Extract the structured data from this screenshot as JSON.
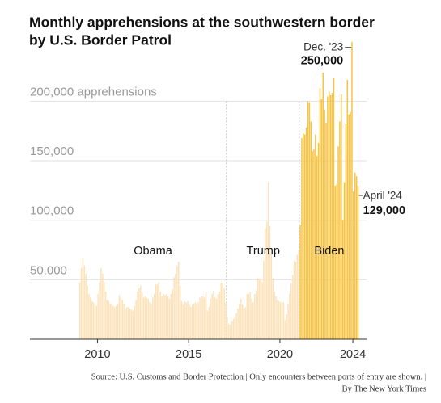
{
  "chart_data": {
    "type": "bar",
    "title": [
      "Monthly apprehensions at the southwestern border",
      "by U.S. Border Patrol"
    ],
    "source": [
      "Source: U.S. Customs and Border Protection | Only encounters between ports of entry are shown. |",
      "By The New York Times"
    ],
    "xlim": [
      2006.3,
      2024.75
    ],
    "xticks": [
      2010,
      2015,
      2020,
      2024
    ],
    "ylim": [
      0,
      260000
    ],
    "yticks": [
      {
        "value": 50000,
        "label": "50,000"
      },
      {
        "value": 100000,
        "label": "100,000"
      },
      {
        "value": 150000,
        "label": "150,000"
      },
      {
        "value": 200000,
        "label": "200,000 apprehensions"
      }
    ],
    "grid": true,
    "annotations": [
      "Dec. '23",
      "April '24"
    ],
    "series": [
      {
        "name": "Obama",
        "color": "#fce3bb",
        "x": [
          2009,
          2009.083,
          2009.167,
          2009.25,
          2009.333,
          2009.417,
          2009.5,
          2009.583,
          2009.667,
          2009.75,
          2009.833,
          2009.917,
          2010,
          2010.083,
          2010.167,
          2010.25,
          2010.333,
          2010.417,
          2010.5,
          2010.583,
          2010.667,
          2010.75,
          2010.833,
          2010.917,
          2011,
          2011.083,
          2011.167,
          2011.25,
          2011.333,
          2011.417,
          2011.5,
          2011.583,
          2011.667,
          2011.75,
          2011.833,
          2011.917,
          2012,
          2012.083,
          2012.167,
          2012.25,
          2012.333,
          2012.417,
          2012.5,
          2012.583,
          2012.667,
          2012.75,
          2012.833,
          2012.917,
          2013,
          2013.083,
          2013.167,
          2013.25,
          2013.333,
          2013.417,
          2013.5,
          2013.583,
          2013.667,
          2013.75,
          2013.833,
          2013.917,
          2014,
          2014.083,
          2014.167,
          2014.25,
          2014.333,
          2014.417,
          2014.5,
          2014.583,
          2014.667,
          2014.75,
          2014.833,
          2014.917,
          2015,
          2015.083,
          2015.167,
          2015.25,
          2015.333,
          2015.417,
          2015.5,
          2015.583,
          2015.667,
          2015.75,
          2015.833,
          2015.917,
          2016,
          2016.083,
          2016.167,
          2016.25,
          2016.333,
          2016.417,
          2016.5,
          2016.583,
          2016.667,
          2016.75,
          2016.833,
          2016.917,
          2017
        ],
        "values": [
          48000,
          60000,
          68000,
          62000,
          55000,
          45000,
          38000,
          35000,
          32000,
          31000,
          30000,
          28000,
          38000,
          48000,
          60000,
          55000,
          48000,
          40000,
          33000,
          32000,
          30000,
          30000,
          28000,
          27000,
          28000,
          30000,
          37000,
          35000,
          33000,
          30000,
          26000,
          27000,
          27000,
          26000,
          25000,
          24000,
          28000,
          33000,
          40000,
          43000,
          45000,
          40000,
          35000,
          36000,
          35000,
          34000,
          31000,
          30000,
          35000,
          38000,
          46000,
          46000,
          48000,
          40000,
          36000,
          38000,
          37000,
          38000,
          36000,
          34000,
          38000,
          42000,
          52000,
          55000,
          62000,
          65000,
          45000,
          32000,
          29000,
          32000,
          31000,
          32000,
          29000,
          27000,
          29000,
          30000,
          31000,
          30000,
          31000,
          35000,
          36000,
          36000,
          35000,
          40000,
          24000,
          27000,
          34000,
          38000,
          41000,
          35000,
          34000,
          38000,
          40000,
          47000,
          48000,
          43000,
          31000
        ]
      },
      {
        "name": "Trump",
        "color": "#fce3bb",
        "x": [
          2017.083,
          2017.167,
          2017.25,
          2017.333,
          2017.417,
          2017.5,
          2017.583,
          2017.667,
          2017.75,
          2017.833,
          2017.917,
          2018,
          2018.083,
          2018.167,
          2018.25,
          2018.333,
          2018.417,
          2018.5,
          2018.583,
          2018.667,
          2018.75,
          2018.833,
          2018.917,
          2019,
          2019.083,
          2019.167,
          2019.25,
          2019.333,
          2019.417,
          2019.5,
          2019.583,
          2019.667,
          2019.75,
          2019.833,
          2019.917,
          2020,
          2020.083,
          2020.167,
          2020.25,
          2020.333,
          2020.417,
          2020.5,
          2020.583,
          2020.667,
          2020.75,
          2020.833,
          2020.917,
          2021
        ],
        "values": [
          19000,
          13000,
          12000,
          15000,
          17000,
          19000,
          22000,
          26000,
          30000,
          34000,
          29000,
          26000,
          27000,
          38000,
          38000,
          40000,
          34000,
          31000,
          38000,
          41000,
          51000,
          51000,
          51000,
          48000,
          66000,
          93000,
          99000,
          132000,
          95000,
          72000,
          51000,
          40000,
          36000,
          33000,
          32000,
          31000,
          30000,
          31000,
          16000,
          21000,
          30000,
          38000,
          47000,
          54000,
          66000,
          65000,
          71000,
          75000
        ]
      },
      {
        "name": "Biden",
        "color": "#f6c445",
        "x": [
          2021.083,
          2021.167,
          2021.25,
          2021.333,
          2021.417,
          2021.5,
          2021.583,
          2021.667,
          2021.75,
          2021.833,
          2021.917,
          2022,
          2022.083,
          2022.167,
          2022.25,
          2022.333,
          2022.417,
          2022.5,
          2022.583,
          2022.667,
          2022.75,
          2022.833,
          2022.917,
          2023,
          2023.083,
          2023.167,
          2023.25,
          2023.333,
          2023.417,
          2023.5,
          2023.583,
          2023.667,
          2023.75,
          2023.833,
          2023.917,
          2024,
          2024.083,
          2024.167,
          2024.25
        ],
        "values": [
          96000,
          169000,
          173000,
          172000,
          178000,
          200000,
          199000,
          183000,
          158000,
          160000,
          172000,
          154000,
          165000,
          211000,
          202000,
          224000,
          193000,
          182000,
          204000,
          208000,
          205000,
          207000,
          220000,
          129000,
          130000,
          162000,
          183000,
          206000,
          100000,
          132000,
          181000,
          218000,
          189000,
          191000,
          250000,
          124000,
          140000,
          137000,
          129000
        ],
        "value_labels": [
          null,
          null,
          null,
          null,
          null,
          null,
          null,
          null,
          null,
          null,
          null,
          null,
          null,
          null,
          null,
          null,
          null,
          null,
          null,
          null,
          null,
          null,
          null,
          null,
          null,
          null,
          null,
          null,
          null,
          null,
          null,
          null,
          null,
          null,
          "250,000",
          null,
          null,
          null,
          "129,000"
        ]
      }
    ]
  }
}
